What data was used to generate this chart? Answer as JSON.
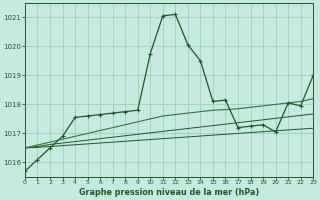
{
  "title": "Graphe pression niveau de la mer (hPa)",
  "bg_color": "#c5eae0",
  "grid_color": "#9dcfc0",
  "line_color_dark": "#1a5c20",
  "line_color_mid": "#2d7a38",
  "xlim": [
    0,
    23
  ],
  "ylim": [
    1015.5,
    1021.5
  ],
  "yticks": [
    1016,
    1017,
    1018,
    1019,
    1020,
    1021
  ],
  "xticks": [
    0,
    1,
    2,
    3,
    4,
    5,
    6,
    7,
    8,
    9,
    10,
    11,
    12,
    13,
    14,
    15,
    16,
    17,
    18,
    19,
    20,
    21,
    22,
    23
  ],
  "series_main": [
    1015.7,
    1016.1,
    1016.5,
    1016.9,
    1017.55,
    1017.6,
    1017.65,
    1017.7,
    1017.75,
    1017.8,
    1019.75,
    1021.05,
    1021.1,
    1020.05,
    1019.5,
    1018.1,
    1018.15,
    1017.2,
    1017.25,
    1017.3,
    1017.05,
    1018.05,
    1017.95,
    1019.0
  ],
  "series_top": [
    1016.5,
    1016.6,
    1016.7,
    1016.8,
    1016.9,
    1017.0,
    1017.1,
    1017.2,
    1017.3,
    1017.4,
    1017.5,
    1017.6,
    1017.65,
    1017.7,
    1017.75,
    1017.8,
    1017.82,
    1017.85,
    1017.9,
    1017.95,
    1018.0,
    1018.05,
    1018.1,
    1018.2
  ],
  "series_mid": [
    1016.5,
    1016.55,
    1016.62,
    1016.67,
    1016.72,
    1016.77,
    1016.82,
    1016.87,
    1016.92,
    1016.97,
    1017.02,
    1017.07,
    1017.12,
    1017.17,
    1017.22,
    1017.27,
    1017.32,
    1017.37,
    1017.42,
    1017.47,
    1017.52,
    1017.57,
    1017.62,
    1017.67
  ],
  "series_bot": [
    1016.5,
    1016.52,
    1016.55,
    1016.58,
    1016.61,
    1016.64,
    1016.67,
    1016.7,
    1016.73,
    1016.76,
    1016.79,
    1016.82,
    1016.85,
    1016.88,
    1016.91,
    1016.94,
    1016.97,
    1017.0,
    1017.03,
    1017.06,
    1017.09,
    1017.12,
    1017.15,
    1017.18
  ]
}
